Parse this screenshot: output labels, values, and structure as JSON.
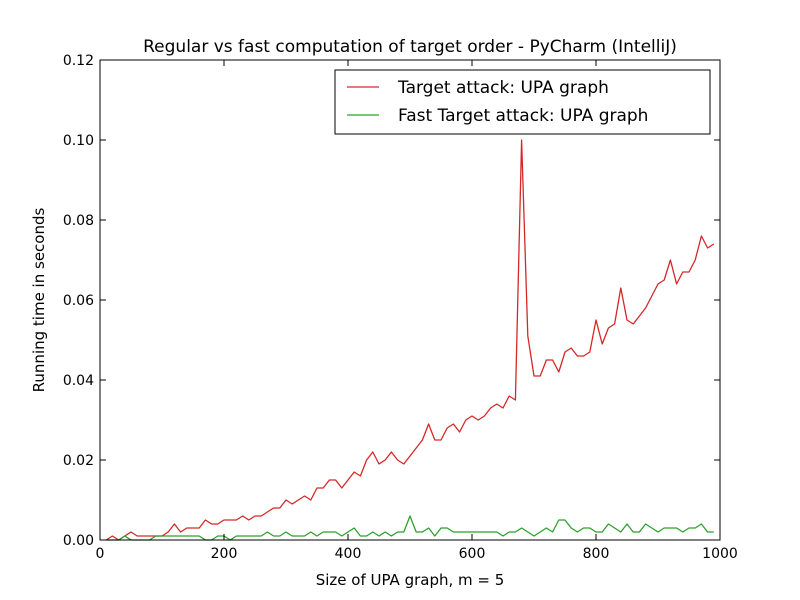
{
  "chart_data": {
    "type": "line",
    "title": "Regular vs fast computation of target order - PyCharm (IntelliJ)",
    "xlabel": "Size of UPA graph, m = 5",
    "ylabel": "Running time in seconds",
    "xlim": [
      0,
      1000
    ],
    "ylim": [
      0,
      0.12
    ],
    "xticks": [
      0,
      200,
      400,
      600,
      800,
      1000
    ],
    "yticks": [
      0.0,
      0.02,
      0.04,
      0.06,
      0.08,
      0.1,
      0.12
    ],
    "ytick_labels": [
      "0.00",
      "0.02",
      "0.04",
      "0.06",
      "0.08",
      "0.10",
      "0.12"
    ],
    "grid": false,
    "legend_position": "top-right",
    "x": [
      10,
      20,
      30,
      40,
      50,
      60,
      70,
      80,
      90,
      100,
      110,
      120,
      130,
      140,
      150,
      160,
      170,
      180,
      190,
      200,
      210,
      220,
      230,
      240,
      250,
      260,
      270,
      280,
      290,
      300,
      310,
      320,
      330,
      340,
      350,
      360,
      370,
      380,
      390,
      400,
      410,
      420,
      430,
      440,
      450,
      460,
      470,
      480,
      490,
      500,
      510,
      520,
      530,
      540,
      550,
      560,
      570,
      580,
      590,
      600,
      610,
      620,
      630,
      640,
      650,
      660,
      670,
      680,
      690,
      700,
      710,
      720,
      730,
      740,
      750,
      760,
      770,
      780,
      790,
      800,
      810,
      820,
      830,
      840,
      850,
      860,
      870,
      880,
      890,
      900,
      910,
      920,
      930,
      940,
      950,
      960,
      970,
      980,
      990
    ],
    "series": [
      {
        "name": "Target attack: UPA graph",
        "color": "#d62728",
        "values": [
          0,
          0.001,
          0,
          0.001,
          0.002,
          0.001,
          0.001,
          0.001,
          0.001,
          0.001,
          0.002,
          0.004,
          0.002,
          0.003,
          0.003,
          0.003,
          0.005,
          0.004,
          0.004,
          0.005,
          0.005,
          0.005,
          0.006,
          0.005,
          0.006,
          0.006,
          0.007,
          0.008,
          0.008,
          0.01,
          0.009,
          0.01,
          0.011,
          0.01,
          0.013,
          0.013,
          0.015,
          0.015,
          0.013,
          0.015,
          0.017,
          0.016,
          0.02,
          0.022,
          0.019,
          0.02,
          0.022,
          0.02,
          0.019,
          0.021,
          0.023,
          0.025,
          0.029,
          0.025,
          0.025,
          0.028,
          0.029,
          0.027,
          0.03,
          0.031,
          0.03,
          0.031,
          0.033,
          0.034,
          0.033,
          0.036,
          0.035,
          0.1,
          0.051,
          0.041,
          0.041,
          0.045,
          0.045,
          0.042,
          0.047,
          0.048,
          0.046,
          0.046,
          0.047,
          0.055,
          0.049,
          0.053,
          0.054,
          0.063,
          0.055,
          0.054,
          0.056,
          0.058,
          0.061,
          0.064,
          0.065,
          0.07,
          0.064,
          0.067,
          0.067,
          0.07,
          0.076,
          0.073,
          0.074
        ]
      },
      {
        "name": "Fast Target attack: UPA graph",
        "color": "#2ca02c",
        "values": [
          0,
          0,
          0,
          0.001,
          0,
          0,
          0,
          0,
          0.001,
          0.001,
          0.001,
          0.001,
          0.001,
          0.001,
          0.001,
          0.001,
          0,
          0,
          0.001,
          0.001,
          0,
          0.001,
          0.001,
          0.001,
          0.001,
          0.001,
          0.002,
          0.001,
          0.001,
          0.002,
          0.001,
          0.001,
          0.001,
          0.002,
          0.001,
          0.002,
          0.002,
          0.002,
          0.001,
          0.002,
          0.003,
          0.001,
          0.001,
          0.002,
          0.001,
          0.002,
          0.001,
          0.002,
          0.002,
          0.006,
          0.002,
          0.002,
          0.003,
          0.001,
          0.003,
          0.003,
          0.002,
          0.002,
          0.002,
          0.002,
          0.002,
          0.002,
          0.002,
          0.002,
          0.001,
          0.002,
          0.002,
          0.003,
          0.002,
          0.001,
          0.002,
          0.003,
          0.002,
          0.005,
          0.005,
          0.003,
          0.002,
          0.003,
          0.003,
          0.002,
          0.002,
          0.004,
          0.003,
          0.002,
          0.004,
          0.002,
          0.002,
          0.004,
          0.003,
          0.002,
          0.003,
          0.003,
          0.003,
          0.002,
          0.003,
          0.003,
          0.004,
          0.002,
          0.002
        ]
      }
    ]
  }
}
